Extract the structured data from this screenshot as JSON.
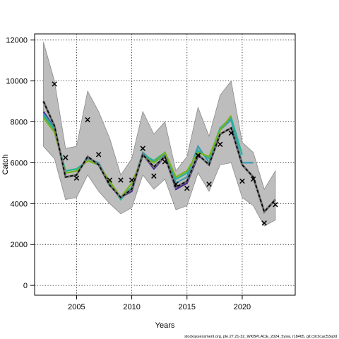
{
  "chart_data": {
    "type": "line",
    "xlabel": "Years",
    "ylabel": "Catch",
    "xlim": [
      2001.2,
      2024.8
    ],
    "ylim": [
      -480,
      12300
    ],
    "x_ticks": [
      2005,
      2010,
      2015,
      2020
    ],
    "y_ticks": [
      0,
      2000,
      4000,
      6000,
      8000,
      10000,
      12000
    ],
    "grid": true,
    "band": {
      "years": [
        2002,
        2003,
        2004,
        2005,
        2006,
        2007,
        2008,
        2009,
        2010,
        2011,
        2012,
        2013,
        2014,
        2015,
        2016,
        2017,
        2018,
        2019,
        2020,
        2021,
        2022,
        2023
      ],
      "upper": [
        11900,
        10000,
        6700,
        6800,
        9500,
        8500,
        7200,
        5400,
        6200,
        8500,
        7400,
        8000,
        5600,
        6300,
        8700,
        7300,
        9300,
        10000,
        7000,
        6500,
        4700,
        5600
      ],
      "lower": [
        6800,
        6200,
        4200,
        4300,
        5400,
        4600,
        4000,
        3500,
        3800,
        5400,
        4700,
        5200,
        3700,
        3900,
        5500,
        4600,
        5900,
        6000,
        4300,
        3900,
        2900,
        3200
      ]
    },
    "series": [
      {
        "color": "#4b2991",
        "x": [
          2002,
          2003,
          2004,
          2005,
          2006,
          2007,
          2008,
          2009,
          2010,
          2011,
          2012,
          2013,
          2014,
          2015,
          2016
        ],
        "y": [
          8500,
          7700,
          5300,
          5400,
          6300,
          5900,
          4900,
          4300,
          4600,
          6400,
          5700,
          6300,
          4700,
          5000,
          6300
        ]
      },
      {
        "color": "#3b9ab2",
        "x": [
          2002,
          2003,
          2004,
          2005,
          2006,
          2007,
          2008,
          2009,
          2010,
          2011,
          2012,
          2013,
          2014,
          2015,
          2016,
          2017,
          2018,
          2019,
          2020,
          2021
        ],
        "y": [
          8400,
          7700,
          5500,
          5600,
          6200,
          6000,
          5000,
          4300,
          4800,
          6500,
          6000,
          6400,
          5000,
          5300,
          6800,
          6000,
          7600,
          8100,
          6000,
          6000
        ]
      },
      {
        "color": "#24b496",
        "x": [
          2002,
          2003,
          2004,
          2005,
          2006,
          2007,
          2008,
          2009,
          2010,
          2011,
          2012,
          2013,
          2014,
          2015,
          2016,
          2017,
          2018,
          2019,
          2020
        ],
        "y": [
          8300,
          7600,
          5600,
          5700,
          6100,
          5900,
          5000,
          4200,
          4800,
          6400,
          6100,
          6500,
          5200,
          5500,
          6600,
          6200,
          7700,
          8200,
          6400
        ]
      },
      {
        "color": "#7ab317",
        "x": [
          2002,
          2003,
          2004,
          2005,
          2006,
          2007,
          2008,
          2009,
          2010,
          2011,
          2012,
          2013,
          2014,
          2015,
          2016,
          2017,
          2018,
          2019
        ],
        "y": [
          8200,
          7500,
          5500,
          5600,
          6100,
          5900,
          5100,
          4300,
          5000,
          6300,
          6000,
          6500,
          5300,
          5600,
          6500,
          6300,
          7600,
          8300
        ]
      },
      {
        "color": "#000000",
        "dashed": true,
        "x": [
          2002,
          2003,
          2004,
          2005,
          2006,
          2007,
          2008,
          2009,
          2010,
          2011,
          2012,
          2013,
          2014,
          2015,
          2016,
          2017,
          2018,
          2019,
          2020,
          2021,
          2022,
          2023
        ],
        "y": [
          9000,
          7800,
          5300,
          5400,
          6300,
          5900,
          4900,
          4300,
          4700,
          6400,
          5800,
          6300,
          4800,
          5100,
          6400,
          5900,
          7400,
          7700,
          5900,
          5300,
          3600,
          4200
        ]
      }
    ],
    "observations": {
      "x": [
        2003,
        2004,
        2005,
        2006,
        2007,
        2008,
        2009,
        2010,
        2011,
        2012,
        2013,
        2014,
        2015,
        2016,
        2017,
        2018,
        2019,
        2020,
        2021,
        2022,
        2023
      ],
      "y": [
        9850,
        6250,
        5250,
        8100,
        6400,
        5150,
        5150,
        5150,
        6700,
        5350,
        6050,
        4950,
        4750,
        6350,
        4950,
        6900,
        7450,
        5100,
        5200,
        3050,
        3950
      ]
    },
    "footnote": "stockassessment.org, ple.27.21-32_WKBPLACE_2024_5ysw, r18465, git:c9c61ac53a0d"
  }
}
